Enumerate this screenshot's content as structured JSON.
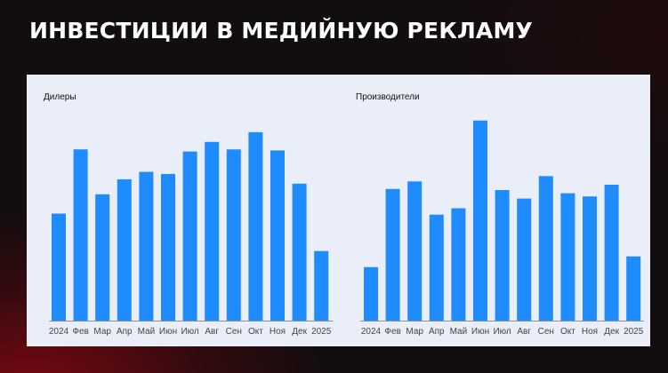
{
  "page": {
    "title": "ИНВЕСТИЦИИ В МЕДИЙНУЮ РЕКЛАМУ"
  },
  "colors": {
    "bar": "#1e8cff",
    "panel_background": "#e9eef9",
    "page_background": "#120d0e",
    "accent_red": "#8c0814"
  },
  "chart_data": [
    {
      "type": "bar",
      "title": "Дилеры",
      "categories": [
        "2024",
        "Фев",
        "Мар",
        "Апр",
        "Май",
        "Июн",
        "Июл",
        "Авг",
        "Сен",
        "Окт",
        "Ноя",
        "Дек",
        "2025"
      ],
      "values": [
        50,
        80,
        59,
        66,
        69.5,
        68.5,
        79,
        83.5,
        80,
        88,
        79.5,
        64,
        32.5
      ],
      "ylim": [
        0,
        100
      ],
      "grid": false,
      "legend": "none",
      "xlabel": "",
      "ylabel": ""
    },
    {
      "type": "bar",
      "title": "Производители",
      "categories": [
        "2024",
        "Фев",
        "Мар",
        "Апр",
        "Май",
        "Июн",
        "Июл",
        "Авг",
        "Сен",
        "Окт",
        "Ноя",
        "Дек",
        "2025"
      ],
      "values": [
        25,
        61.5,
        65,
        49.5,
        52.5,
        93.5,
        61,
        57,
        67.5,
        59.5,
        58,
        63.5,
        30
      ],
      "ylim": [
        0,
        100
      ],
      "grid": false,
      "legend": "none",
      "xlabel": "",
      "ylabel": ""
    }
  ]
}
